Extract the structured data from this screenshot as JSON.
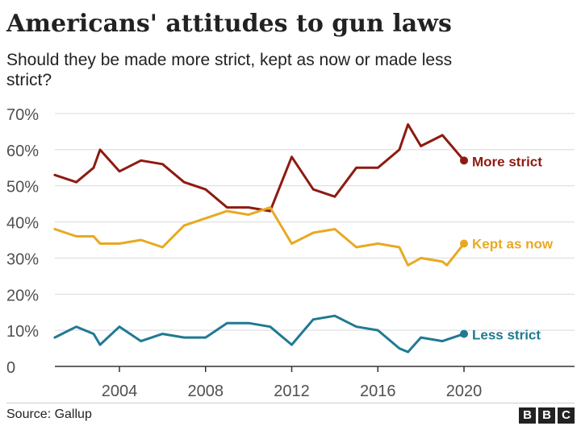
{
  "title": "Americans' attitudes to gun laws",
  "subtitle": "Should they be made more strict, kept as now or made less strict?",
  "source": "Source: Gallup",
  "brand": [
    "B",
    "B",
    "C"
  ],
  "chart_data": {
    "type": "line",
    "ylim": [
      0,
      70
    ],
    "xlim": [
      2001,
      2024
    ],
    "y_ticks": [
      0,
      10,
      20,
      30,
      40,
      50,
      60,
      70
    ],
    "y_tick_labels": [
      "0",
      "10%",
      "20%",
      "30%",
      "40%",
      "50%",
      "60%",
      "70%"
    ],
    "x_ticks": [
      2004,
      2008,
      2012,
      2016,
      2020
    ],
    "x_tick_labels": [
      "2004",
      "2008",
      "2012",
      "2016",
      "2020"
    ],
    "grid": true,
    "legend": "direct labels at line ends",
    "series": [
      {
        "name": "More strict",
        "color": "#8d1b12",
        "points": [
          [
            2001,
            53
          ],
          [
            2002,
            51
          ],
          [
            2002.8,
            55
          ],
          [
            2003.1,
            60
          ],
          [
            2004,
            54
          ],
          [
            2005,
            57
          ],
          [
            2006,
            56
          ],
          [
            2007,
            51
          ],
          [
            2008,
            49
          ],
          [
            2009,
            44
          ],
          [
            2010,
            44
          ],
          [
            2011,
            43
          ],
          [
            2012,
            58
          ],
          [
            2013,
            49
          ],
          [
            2014,
            47
          ],
          [
            2015,
            55
          ],
          [
            2016,
            55
          ],
          [
            2017,
            60
          ],
          [
            2017.4,
            67
          ],
          [
            2018,
            61
          ],
          [
            2019,
            64
          ],
          [
            2020,
            57
          ]
        ]
      },
      {
        "name": "Kept as now",
        "color": "#e8a921",
        "points": [
          [
            2001,
            38
          ],
          [
            2002,
            36
          ],
          [
            2002.8,
            36
          ],
          [
            2003.1,
            34
          ],
          [
            2004,
            34
          ],
          [
            2005,
            35
          ],
          [
            2006,
            33
          ],
          [
            2007,
            39
          ],
          [
            2008,
            41
          ],
          [
            2009,
            43
          ],
          [
            2010,
            42
          ],
          [
            2011,
            44
          ],
          [
            2012,
            34
          ],
          [
            2013,
            37
          ],
          [
            2014,
            38
          ],
          [
            2015,
            33
          ],
          [
            2016,
            34
          ],
          [
            2017,
            33
          ],
          [
            2017.4,
            28
          ],
          [
            2018,
            30
          ],
          [
            2019,
            29
          ],
          [
            2019.2,
            28
          ],
          [
            2020,
            34
          ]
        ]
      },
      {
        "name": "Less strict",
        "color": "#1f7a92",
        "points": [
          [
            2001,
            8
          ],
          [
            2002,
            11
          ],
          [
            2002.8,
            9
          ],
          [
            2003.1,
            6
          ],
          [
            2004,
            11
          ],
          [
            2005,
            7
          ],
          [
            2006,
            9
          ],
          [
            2007,
            8
          ],
          [
            2008,
            8
          ],
          [
            2009,
            12
          ],
          [
            2010,
            12
          ],
          [
            2011,
            11
          ],
          [
            2012,
            6
          ],
          [
            2013,
            13
          ],
          [
            2014,
            14
          ],
          [
            2015,
            11
          ],
          [
            2016,
            10
          ],
          [
            2017,
            5
          ],
          [
            2017.4,
            4
          ],
          [
            2018,
            8
          ],
          [
            2019,
            7
          ],
          [
            2020,
            9
          ]
        ]
      }
    ]
  }
}
